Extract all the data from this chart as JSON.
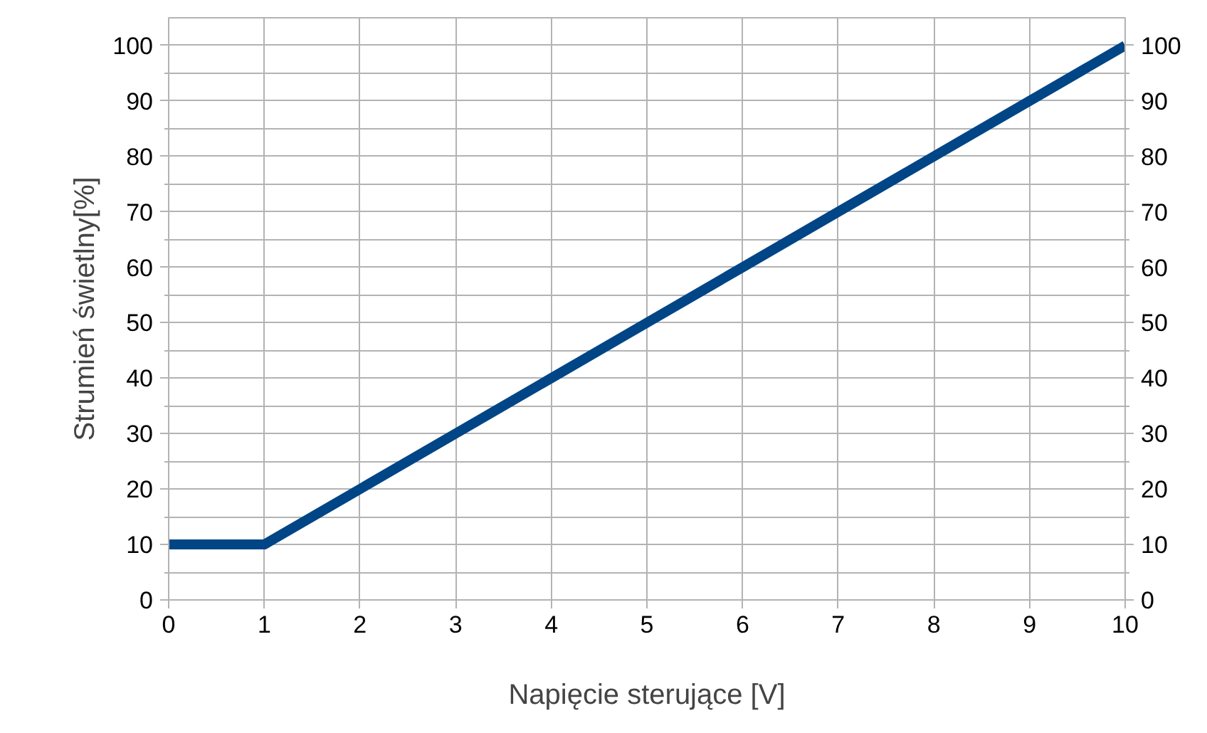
{
  "chart_data": {
    "type": "line",
    "xlabel": "Napięcie sterujące [V]",
    "ylabel": "Strumień świetlny[%]",
    "x": [
      0,
      1,
      2,
      3,
      4,
      5,
      6,
      7,
      8,
      9,
      10
    ],
    "series": [
      {
        "color": "#004586",
        "values": [
          10,
          10,
          20,
          30,
          40,
          50,
          60,
          70,
          80,
          90,
          100
        ]
      }
    ],
    "xlim": [
      0,
      10
    ],
    "ylim": [
      0,
      105
    ],
    "xticks": [
      0,
      1,
      2,
      3,
      4,
      5,
      6,
      7,
      8,
      9,
      10
    ],
    "yticks": [
      0,
      10,
      20,
      30,
      40,
      50,
      60,
      70,
      80,
      90,
      100
    ],
    "y2lim": [
      0,
      105
    ],
    "y2ticks": [
      0,
      10,
      20,
      30,
      40,
      50,
      60,
      70,
      80,
      90,
      100
    ],
    "grid": true,
    "marker": "none",
    "line_style": "solid"
  }
}
